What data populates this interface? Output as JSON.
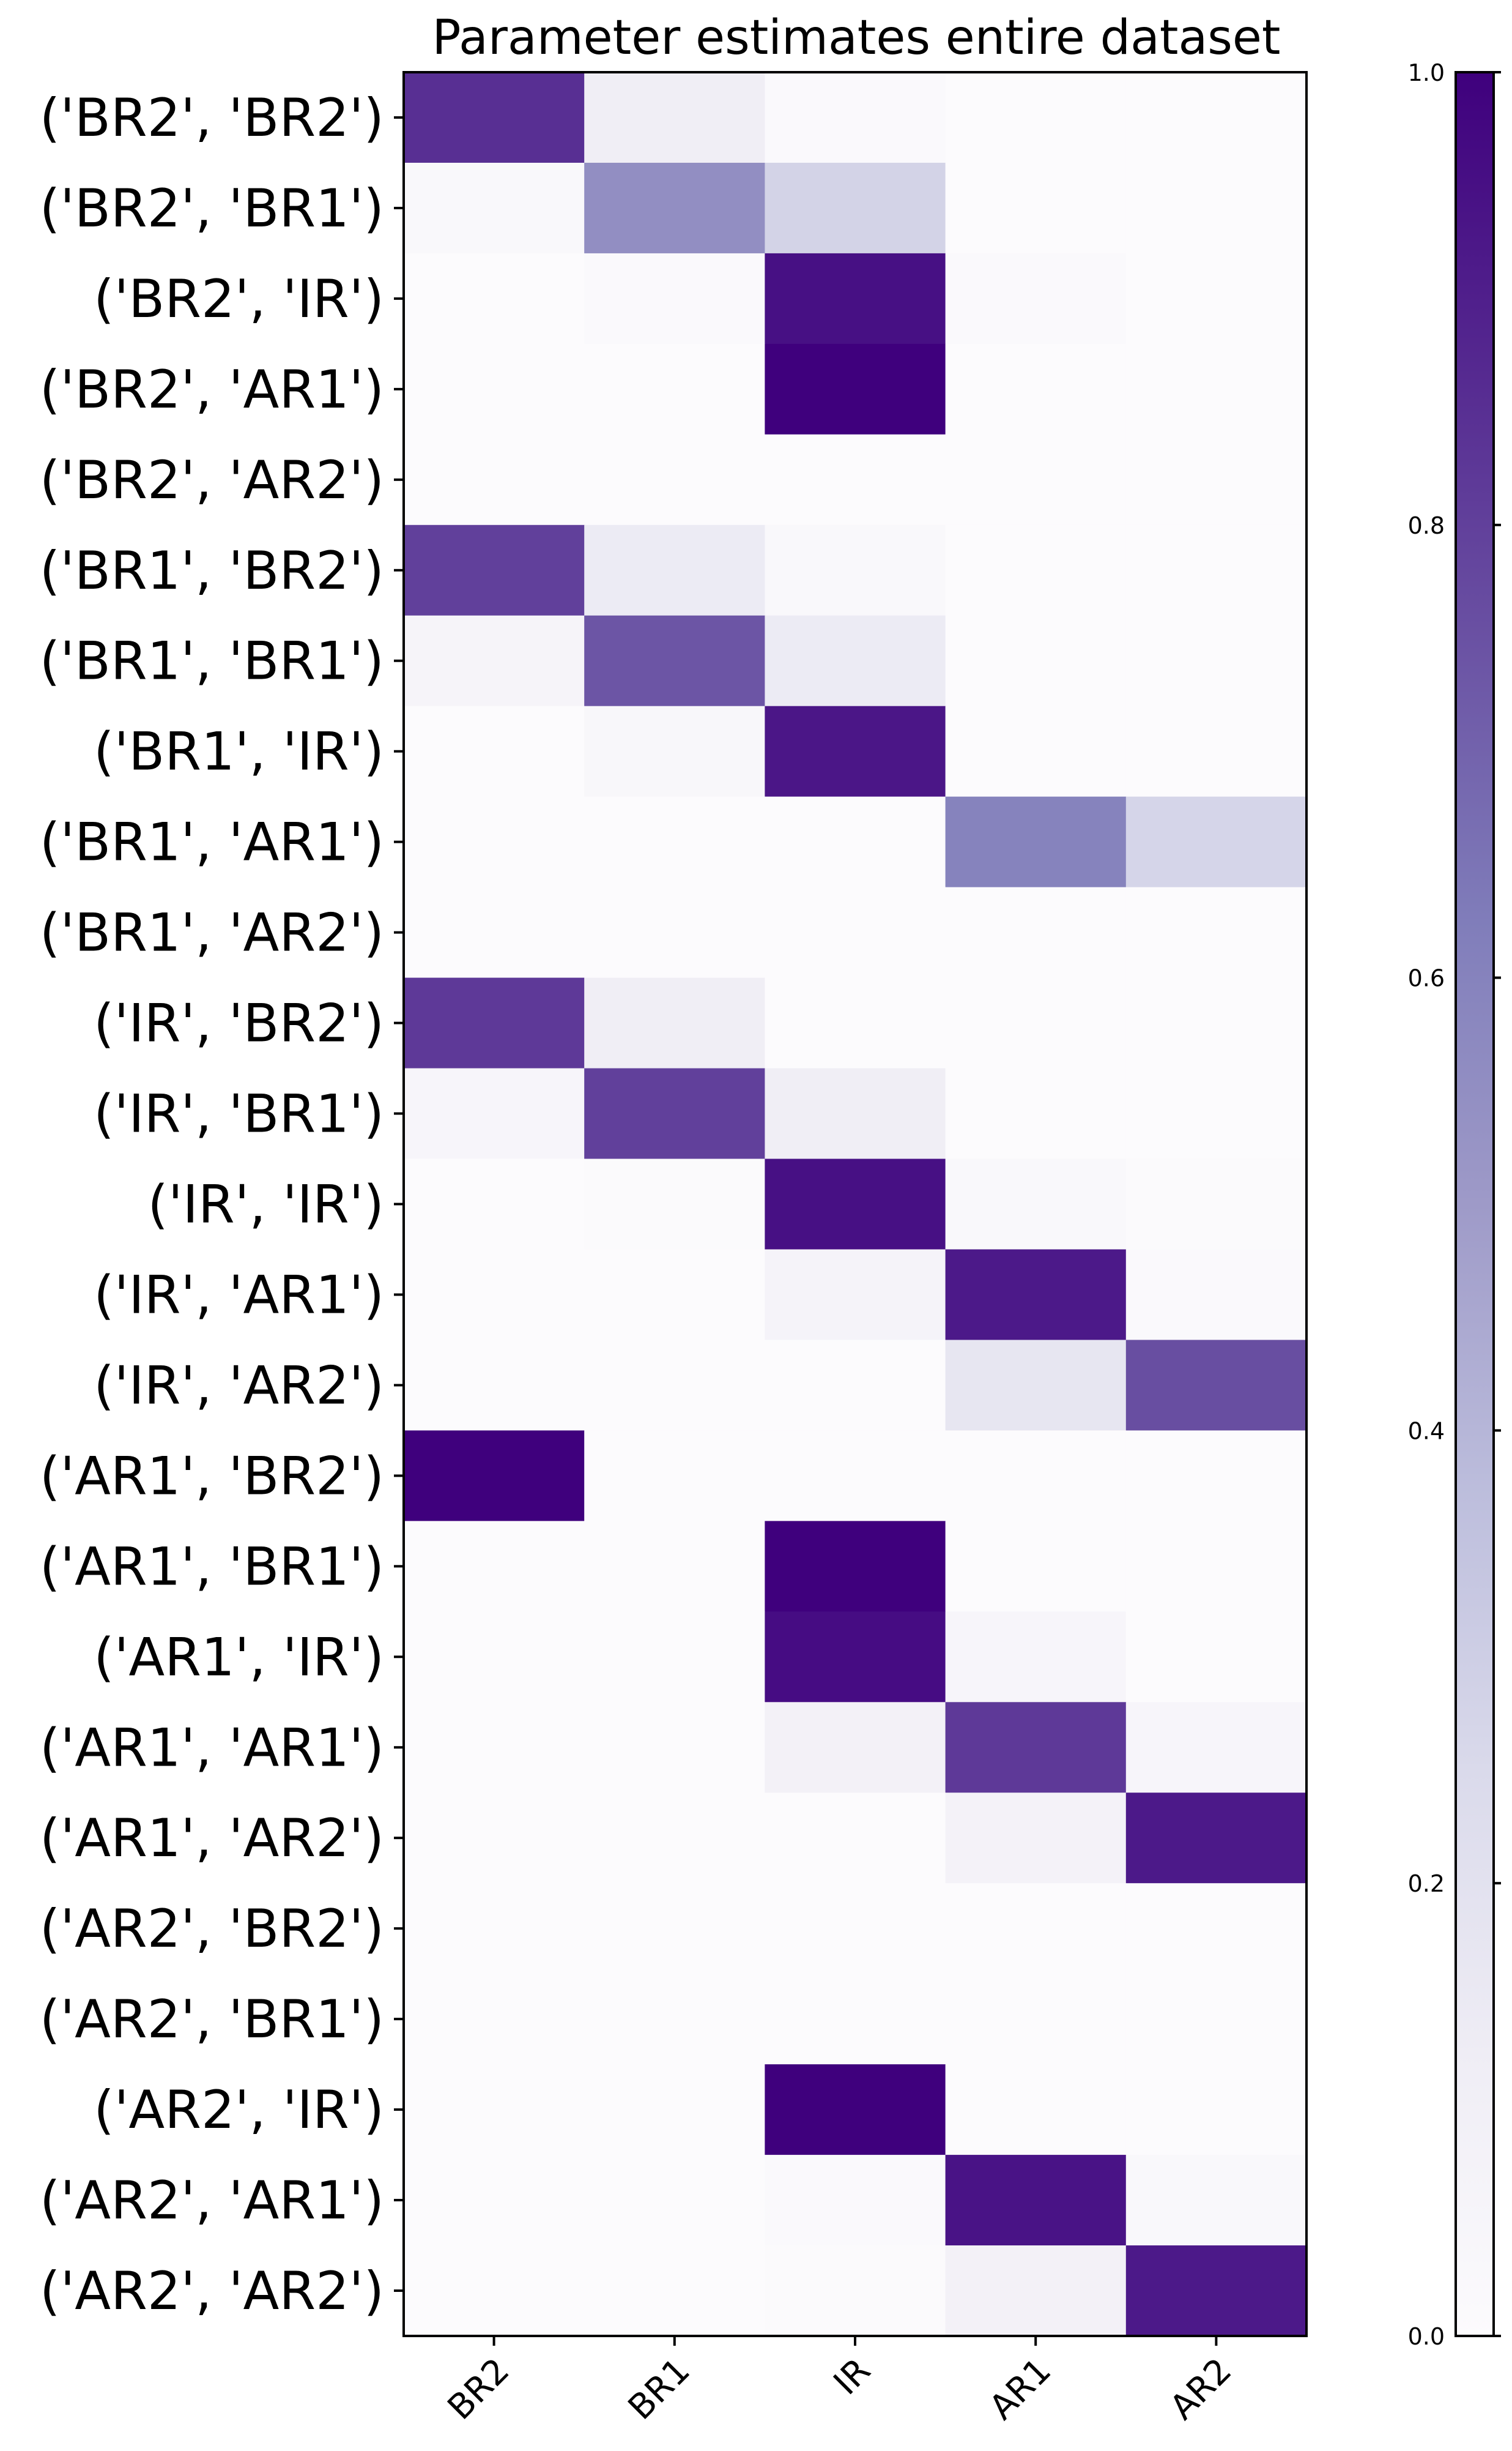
{
  "chart_data": {
    "type": "heatmap",
    "title": "Parameter estimates entire dataset",
    "columns": [
      "BR2",
      "BR1",
      "IR",
      "AR1",
      "AR2"
    ],
    "rows": [
      "('BR2', 'BR2')",
      "('BR2', 'BR1')",
      "('BR2', 'IR')",
      "('BR2', 'AR1')",
      "('BR2', 'AR2')",
      "('BR1', 'BR2')",
      "('BR1', 'BR1')",
      "('BR1', 'IR')",
      "('BR1', 'AR1')",
      "('BR1', 'AR2')",
      "('IR', 'BR2')",
      "('IR', 'BR1')",
      "('IR', 'IR')",
      "('IR', 'AR1')",
      "('IR', 'AR2')",
      "('AR1', 'BR2')",
      "('AR1', 'BR1')",
      "('AR1', 'IR')",
      "('AR1', 'AR1')",
      "('AR1', 'AR2')",
      "('AR2', 'BR2')",
      "('AR2', 'BR1')",
      "('AR2', 'IR')",
      "('AR2', 'AR1')",
      "('AR2', 'AR2')"
    ],
    "values": [
      [
        0.85,
        0.12,
        0.02,
        0.0,
        0.0
      ],
      [
        0.03,
        0.55,
        0.28,
        0.0,
        0.0
      ],
      [
        0.0,
        0.02,
        0.95,
        0.02,
        0.0
      ],
      [
        0.0,
        0.0,
        1.0,
        0.0,
        0.0
      ],
      [
        0.0,
        0.0,
        0.0,
        0.0,
        0.0
      ],
      [
        0.8,
        0.14,
        0.03,
        0.0,
        0.0
      ],
      [
        0.06,
        0.74,
        0.14,
        0.0,
        0.0
      ],
      [
        0.0,
        0.04,
        0.93,
        0.0,
        0.0
      ],
      [
        0.0,
        0.0,
        0.0,
        0.6,
        0.27
      ],
      [
        0.0,
        0.0,
        0.0,
        0.0,
        0.0
      ],
      [
        0.82,
        0.12,
        0.0,
        0.0,
        0.0
      ],
      [
        0.05,
        0.8,
        0.12,
        0.0,
        0.0
      ],
      [
        0.0,
        0.01,
        0.95,
        0.03,
        0.01
      ],
      [
        0.0,
        0.0,
        0.07,
        0.92,
        0.02
      ],
      [
        0.0,
        0.0,
        0.0,
        0.17,
        0.76
      ],
      [
        1.0,
        0.0,
        0.0,
        0.0,
        0.0
      ],
      [
        0.0,
        0.0,
        1.0,
        0.0,
        0.0
      ],
      [
        0.0,
        0.0,
        0.96,
        0.05,
        0.0
      ],
      [
        0.0,
        0.0,
        0.09,
        0.82,
        0.05
      ],
      [
        0.0,
        0.0,
        0.0,
        0.08,
        0.92
      ],
      [
        0.0,
        0.0,
        0.0,
        0.0,
        0.0
      ],
      [
        0.0,
        0.0,
        0.0,
        0.0,
        0.0
      ],
      [
        0.0,
        0.0,
        1.0,
        0.0,
        0.0
      ],
      [
        0.0,
        0.0,
        0.02,
        0.94,
        0.03
      ],
      [
        0.0,
        0.0,
        0.01,
        0.09,
        0.92
      ]
    ],
    "colorbar": {
      "range": [
        0.0,
        1.0
      ],
      "ticks": [
        "0.0",
        "0.2",
        "0.4",
        "0.6",
        "0.8",
        "1.0"
      ],
      "colormap": "Purples",
      "low_color": "#fcfbfd",
      "high_color": "#3f007d"
    },
    "xtick_rotation": "45 degrees",
    "grid": false
  }
}
